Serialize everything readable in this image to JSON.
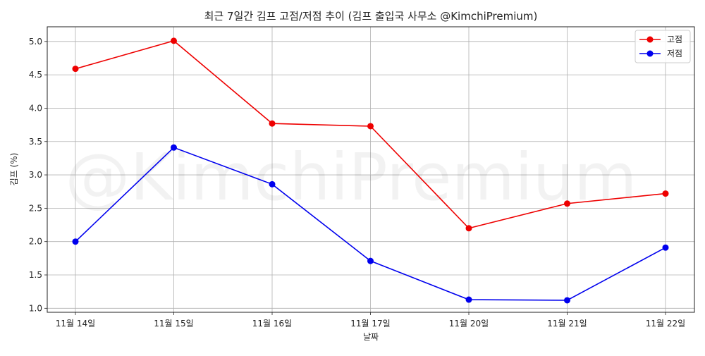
{
  "chart_data": {
    "type": "line",
    "title": "최근 7일간 김프 고점/저점 추이 (김프 출입국 사무소 @KimchiPremium)",
    "xlabel": "날짜",
    "ylabel": "김프 (%)",
    "categories": [
      "11월 14일",
      "11월 15일",
      "11월 16일",
      "11월 17일",
      "11월 20일",
      "11월 21일",
      "11월 22일"
    ],
    "series": [
      {
        "name": "고점",
        "color": "#ee0000",
        "values": [
          4.59,
          5.01,
          3.77,
          3.73,
          2.2,
          2.57,
          2.72
        ]
      },
      {
        "name": "저점",
        "color": "#0000ee",
        "values": [
          2.0,
          3.41,
          2.86,
          1.71,
          1.13,
          1.12,
          1.91
        ]
      }
    ],
    "ylim": [
      0.94,
      5.22
    ],
    "yticks": [
      "1.0",
      "1.5",
      "2.0",
      "2.5",
      "3.0",
      "3.5",
      "4.0",
      "4.5",
      "5.0"
    ],
    "grid": true,
    "legend_position": "top-right",
    "watermark": "@KimchiPremium"
  }
}
